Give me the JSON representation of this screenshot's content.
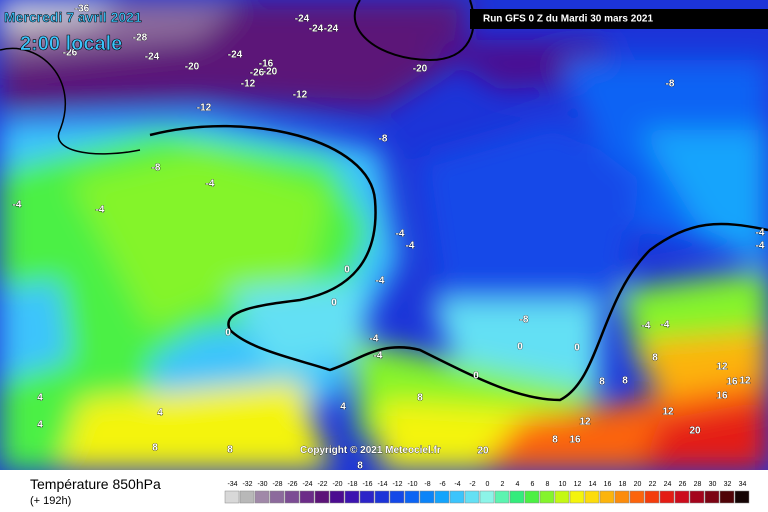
{
  "header": {
    "date": "Mercredi 7 avril 2021",
    "time": "2:00 locale",
    "run": "Run GFS 0 Z du Mardi 30 mars 2021"
  },
  "map": {
    "labels": [
      -36,
      -24,
      -24,
      -24,
      -28,
      -26,
      -24,
      -24,
      -20,
      -16,
      -26,
      -20,
      -12,
      -12,
      -20,
      -8,
      -12,
      -8,
      -8,
      -4,
      -4,
      -4,
      -4,
      -4,
      -4,
      -4,
      0,
      -4,
      0,
      0,
      -8,
      -4,
      -4,
      -4,
      0,
      0,
      8,
      -4,
      12,
      0,
      16,
      12,
      8,
      8,
      4,
      4,
      4,
      16,
      8,
      4,
      12,
      12,
      16,
      20,
      8,
      8,
      8,
      20,
      8
    ]
  },
  "copyright": "Copyright © 2021 Meteociel.fr",
  "legend": {
    "title": "Température 850hPa",
    "lead": "(+ 192h)",
    "scale": [
      -34,
      -32,
      -30,
      -28,
      -26,
      -24,
      -22,
      -20,
      -18,
      -16,
      -14,
      -12,
      -10,
      -8,
      -6,
      -4,
      -2,
      0,
      2,
      4,
      6,
      8,
      10,
      12,
      14,
      16,
      18,
      20,
      22,
      24,
      26,
      28,
      30,
      32,
      34
    ],
    "colors": [
      "#d8d8d8",
      "#b8b8b8",
      "#a088a8",
      "#8c6a9c",
      "#7c4c94",
      "#6c2c88",
      "#5c1478",
      "#4c0c90",
      "#3c14b0",
      "#2c24c8",
      "#1c34d8",
      "#1448e8",
      "#0c64f4",
      "#0c84f8",
      "#14a4fc",
      "#3cc4fc",
      "#64e0f4",
      "#8cf4e8",
      "#5cf4b0",
      "#34ec7c",
      "#4cf044",
      "#84f42c",
      "#c4f814",
      "#f4f40c",
      "#fcdc0c",
      "#fcb40c",
      "#fc8c0c",
      "#fc640c",
      "#f43c0c",
      "#e41c14",
      "#cc0c1c",
      "#a4041c",
      "#7c0414",
      "#500408",
      "#140404"
    ]
  }
}
